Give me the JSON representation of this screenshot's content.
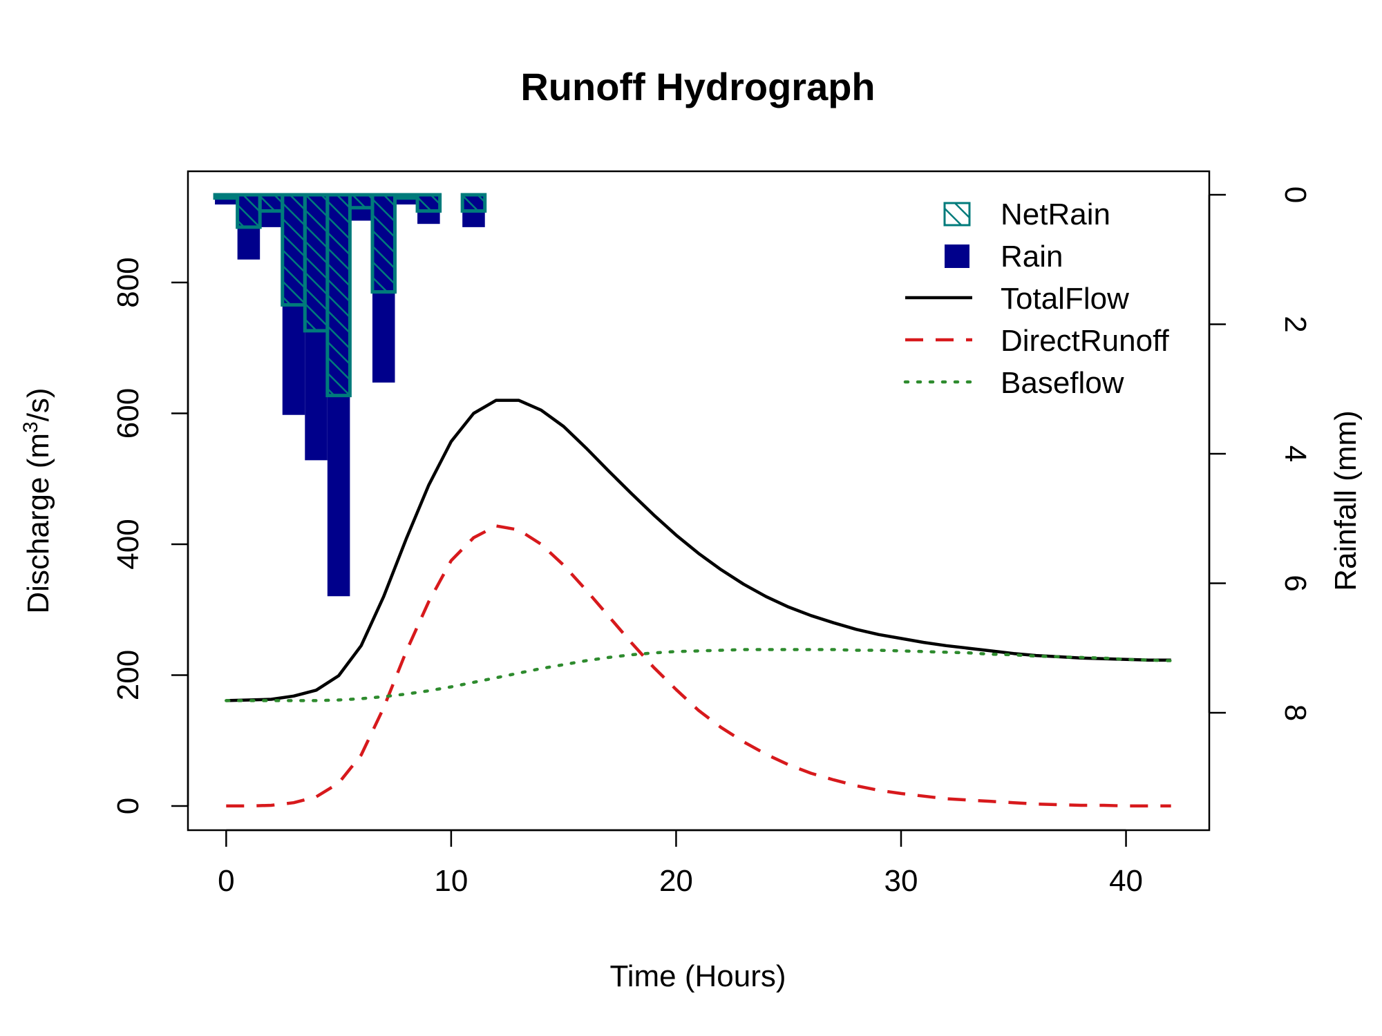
{
  "chart_data": {
    "type": "line",
    "title": "Runoff Hydrograph",
    "xlabel": "Time (Hours)",
    "ylabel": "Discharge (m³/s)",
    "ylabel_parts": {
      "pre": "Discharge (m",
      "sup": "3",
      "post": "/s)"
    },
    "y2label": "Rainfall (mm)",
    "xlim": [
      -1.7,
      43.7
    ],
    "ylim": [
      -37,
      970
    ],
    "y2lim": [
      0,
      10
    ],
    "y2_reversed": true,
    "x_ticks": [
      0,
      10,
      20,
      30,
      40
    ],
    "y_ticks": [
      0,
      200,
      400,
      600,
      800
    ],
    "y2_ticks": [
      0,
      2,
      4,
      6,
      8
    ],
    "legend_position": "top-right",
    "grid": false,
    "series": [
      {
        "name": "TotalFlow",
        "kind": "line",
        "style": "solid",
        "color": "#000000",
        "x": [
          0,
          1,
          2,
          3,
          4,
          5,
          6,
          7,
          8,
          9,
          10,
          11,
          12,
          13,
          14,
          15,
          16,
          17,
          18,
          19,
          20,
          21,
          22,
          23,
          24,
          25,
          26,
          27,
          28,
          29,
          30,
          31,
          32,
          33,
          34,
          35,
          36,
          37,
          38,
          39,
          40,
          41,
          42
        ],
        "y": [
          161,
          162,
          163,
          168,
          177,
          199,
          245,
          320,
          408,
          490,
          557,
          600,
          620,
          620,
          605,
          580,
          547,
          512,
          478,
          445,
          414,
          386,
          361,
          339,
          320,
          304,
          291,
          280,
          270,
          262,
          256,
          250,
          245,
          241,
          237,
          233,
          230,
          228,
          226,
          225,
          224,
          223,
          223
        ]
      },
      {
        "name": "DirectRunoff",
        "kind": "line",
        "style": "dashed",
        "color": "#d7191c",
        "x": [
          0,
          1,
          2,
          3,
          4,
          5,
          6,
          7,
          8,
          9,
          10,
          11,
          12,
          13,
          14,
          15,
          16,
          17,
          18,
          19,
          20,
          21,
          22,
          23,
          24,
          25,
          26,
          27,
          28,
          29,
          30,
          31,
          32,
          33,
          34,
          35,
          36,
          37,
          38,
          39,
          40,
          41,
          42
        ],
        "y": [
          0,
          0,
          1,
          5,
          14,
          35,
          78,
          150,
          236,
          312,
          375,
          410,
          428,
          422,
          400,
          368,
          330,
          290,
          250,
          212,
          178,
          146,
          120,
          98,
          79,
          63,
          50,
          40,
          31,
          24,
          19,
          15,
          11,
          9,
          7,
          5,
          3,
          2,
          1,
          1,
          0,
          0,
          0
        ]
      },
      {
        "name": "Baseflow",
        "kind": "line",
        "style": "dotted",
        "color": "#2e8b2e",
        "x": [
          0,
          1,
          2,
          3,
          4,
          5,
          6,
          7,
          8,
          9,
          10,
          11,
          12,
          13,
          14,
          15,
          16,
          17,
          18,
          19,
          20,
          21,
          22,
          23,
          24,
          25,
          26,
          27,
          28,
          29,
          30,
          31,
          32,
          33,
          34,
          35,
          36,
          37,
          38,
          39,
          40,
          41,
          42
        ],
        "y": [
          161,
          161,
          161,
          161,
          161,
          162,
          164,
          167,
          171,
          176,
          182,
          189,
          196,
          203,
          210,
          216,
          222,
          227,
          231,
          234,
          236,
          237,
          238,
          239,
          239,
          239,
          239,
          239,
          238,
          238,
          237,
          236,
          235,
          234,
          232,
          231,
          229,
          228,
          227,
          226,
          224,
          223,
          222
        ]
      },
      {
        "name": "Rain",
        "kind": "bar",
        "axis": "y2",
        "color": "#00008b",
        "x": [
          0,
          1,
          2,
          3,
          4,
          5,
          6,
          7,
          8,
          9,
          10,
          11
        ],
        "y": [
          0.15,
          1.0,
          0.5,
          3.4,
          4.1,
          6.2,
          0.4,
          2.9,
          0.15,
          0.45,
          0,
          0.5
        ]
      },
      {
        "name": "NetRain",
        "kind": "bar",
        "axis": "y2",
        "color": "#007b7b",
        "hatch": "diagonal",
        "x": [
          0,
          1,
          2,
          3,
          4,
          5,
          6,
          7,
          8,
          9,
          10,
          11
        ],
        "y": [
          0.05,
          0.5,
          0.25,
          1.7,
          2.1,
          3.1,
          0.2,
          1.5,
          0.05,
          0.25,
          0,
          0.25
        ]
      }
    ],
    "legend": [
      {
        "label": "NetRain",
        "symbol": "hatched-box",
        "color": "#007b7b"
      },
      {
        "label": "Rain",
        "symbol": "filled-box",
        "color": "#00008b"
      },
      {
        "label": "TotalFlow",
        "symbol": "solid-line",
        "color": "#000000"
      },
      {
        "label": "DirectRunoff",
        "symbol": "dashed-line",
        "color": "#d7191c"
      },
      {
        "label": "Baseflow",
        "symbol": "dotted-line",
        "color": "#2e8b2e"
      }
    ]
  }
}
